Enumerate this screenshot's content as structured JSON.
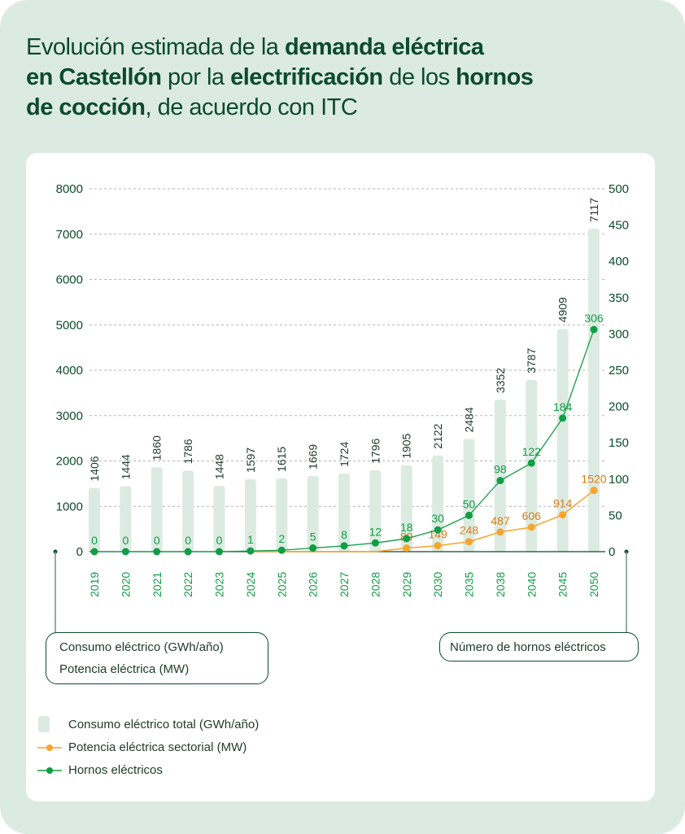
{
  "title": {
    "parts": [
      {
        "text": "Evolución estimada de la ",
        "bold": false
      },
      {
        "text": "demanda eléctrica",
        "bold": true
      },
      {
        "text": "\n",
        "bold": false
      },
      {
        "text": "en Castellón",
        "bold": true
      },
      {
        "text": " por la ",
        "bold": false
      },
      {
        "text": "electrificación",
        "bold": true
      },
      {
        "text": " de los ",
        "bold": false
      },
      {
        "text": "hornos",
        "bold": true
      },
      {
        "text": "\n",
        "bold": false
      },
      {
        "text": "de cocción",
        "bold": true
      },
      {
        "text": ", de acuerdo con ITC",
        "bold": false
      }
    ]
  },
  "axis_boxes": {
    "left_line1": "Consumo eléctrico (GWh/año)",
    "left_line2": "Potencia eléctrica (MW)",
    "right": "Número de hornos eléctricos"
  },
  "legend": {
    "items": [
      {
        "label": "Consumo eléctrico total (GWh/año)"
      },
      {
        "label": "Potencia eléctrica sectorial (MW)"
      },
      {
        "label": "Hornos eléctricos"
      }
    ]
  },
  "colors": {
    "bar": "#dcebe1",
    "power": "#f7a42c",
    "power_label": "#d97b10",
    "ovens": "#0f9d45",
    "axis_text": "#0c4a2e",
    "grid": "#b5b5b5"
  },
  "chart_data": {
    "type": "bar",
    "title": "Evolución estimada de la demanda eléctrica en Castellón por la electrificación de los hornos de cocción, de acuerdo con ITC",
    "categories": [
      "2019",
      "2020",
      "2021",
      "2022",
      "2023",
      "2024",
      "2025",
      "2026",
      "2027",
      "2028",
      "2029",
      "2030",
      "2035",
      "2038",
      "2040",
      "2045",
      "2050"
    ],
    "left_axis": {
      "label": "Consumo eléctrico (GWh/año) / Potencia eléctrica (MW)",
      "ylim": [
        0,
        8000
      ],
      "ticks": [
        0,
        1000,
        2000,
        3000,
        4000,
        5000,
        6000,
        7000,
        8000
      ]
    },
    "right_axis": {
      "label": "Número de hornos eléctricos",
      "ylim": [
        0,
        500
      ],
      "ticks": [
        0,
        50,
        100,
        150,
        200,
        250,
        300,
        350,
        400,
        450,
        500
      ]
    },
    "grid": true,
    "legend_position": "bottom-left",
    "series": [
      {
        "name": "Consumo eléctrico total (GWh/año)",
        "type": "bar",
        "axis": "left",
        "values": [
          1406,
          1444,
          1860,
          1786,
          1448,
          1597,
          1615,
          1669,
          1724,
          1796,
          1905,
          2122,
          2484,
          3352,
          3787,
          4909,
          7117
        ]
      },
      {
        "name": "Potencia eléctrica sectorial (MW)",
        "type": "line",
        "axis": "left",
        "values": [
          null,
          null,
          null,
          null,
          null,
          0,
          0,
          0,
          0,
          0,
          89,
          149,
          248,
          487,
          606,
          914,
          1520
        ],
        "labeled_from_index": 10
      },
      {
        "name": "Hornos eléctricos",
        "type": "line",
        "axis": "right",
        "values": [
          0,
          0,
          0,
          0,
          0,
          1,
          2,
          5,
          8,
          12,
          18,
          30,
          50,
          98,
          122,
          184,
          306
        ]
      }
    ]
  }
}
